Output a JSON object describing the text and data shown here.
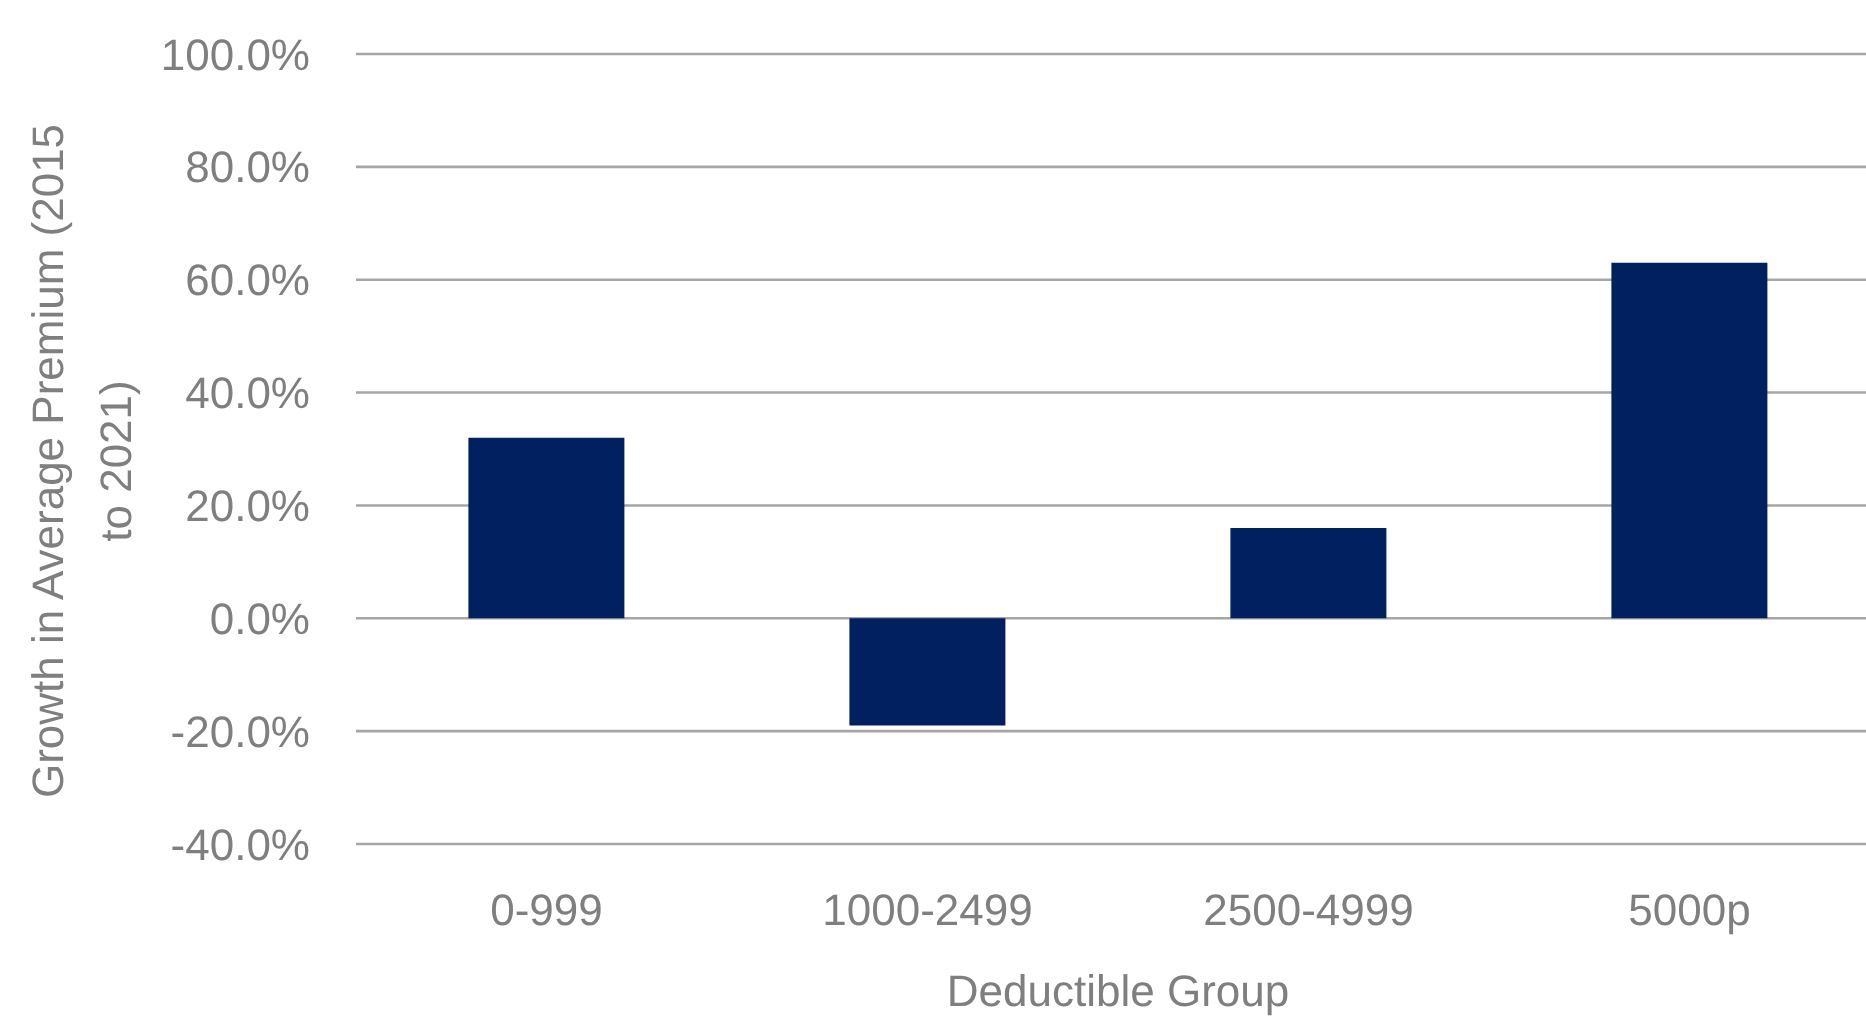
{
  "chart_data": {
    "type": "bar",
    "xlabel": "Deductible Group",
    "ylabel": "Growth in Average Premium (2015 to 2021)",
    "categories": [
      "0-999",
      "1000-2499",
      "2500-4999",
      "5000p"
    ],
    "values": [
      32,
      -19,
      16,
      63
    ],
    "color": "#002060",
    "ylim": [
      -40,
      100
    ],
    "yticks": [
      {
        "value": -40,
        "label": "-40.0%"
      },
      {
        "value": -20,
        "label": "-20.0%"
      },
      {
        "value": 0,
        "label": "0.0%"
      },
      {
        "value": 20,
        "label": "20.0%"
      },
      {
        "value": 40,
        "label": "40.0%"
      },
      {
        "value": 60,
        "label": "60.0%"
      },
      {
        "value": 80,
        "label": "80.0%"
      },
      {
        "value": 100,
        "label": "100.0%"
      }
    ],
    "grid": "y"
  }
}
